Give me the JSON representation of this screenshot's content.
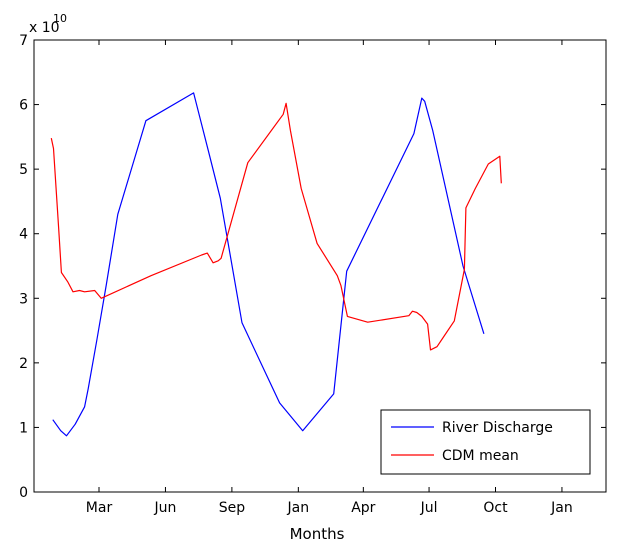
{
  "chart_data": {
    "type": "line",
    "title": "",
    "xlabel": "Months",
    "ylabel": "",
    "y_multiplier_label": "x 10",
    "y_multiplier_exponent": "10",
    "xlim": [
      0,
      792
    ],
    "ylim": [
      0,
      7
    ],
    "y_ticks": [
      0,
      1,
      2,
      3,
      4,
      5,
      6,
      7
    ],
    "x_ticks": [
      {
        "x": 90,
        "label": "Mar"
      },
      {
        "x": 182,
        "label": "Jun"
      },
      {
        "x": 274,
        "label": "Sep"
      },
      {
        "x": 366,
        "label": "Jan"
      },
      {
        "x": 456,
        "label": "Apr"
      },
      {
        "x": 547,
        "label": "Jul"
      },
      {
        "x": 639,
        "label": "Oct"
      },
      {
        "x": 731,
        "label": "Jan"
      }
    ],
    "grid": false,
    "legend_position": "bottom-right",
    "series": [
      {
        "name": "River Discharge",
        "color": "#0000ff",
        "x": [
          26,
          37,
          45,
          57,
          70,
          75,
          87,
          100,
          116,
          155,
          221,
          241,
          258,
          288,
          340,
          372,
          415,
          433,
          526,
          537,
          541,
          552,
          594,
          623
        ],
        "y": [
          1.12,
          0.95,
          0.87,
          1.05,
          1.32,
          1.6,
          2.35,
          3.2,
          4.3,
          5.75,
          6.18,
          5.3,
          4.55,
          2.62,
          1.38,
          0.95,
          1.52,
          3.42,
          5.55,
          6.1,
          6.05,
          5.6,
          3.5,
          2.45
        ]
      },
      {
        "name": "CDM mean",
        "color": "#ff0000",
        "x": [
          24,
          27,
          34,
          38,
          47,
          54,
          63,
          70,
          84,
          93,
          162,
          232,
          240,
          248,
          255,
          259,
          296,
          345,
          349,
          355,
          370,
          392,
          420,
          425,
          434,
          462,
          519,
          524,
          530,
          537,
          545,
          549,
          558,
          567,
          582,
          596,
          598,
          611,
          629,
          645,
          647
        ],
        "y": [
          5.48,
          5.32,
          4.1,
          3.4,
          3.25,
          3.1,
          3.12,
          3.1,
          3.12,
          3.0,
          3.35,
          3.67,
          3.7,
          3.55,
          3.58,
          3.62,
          5.1,
          5.85,
          6.02,
          5.6,
          4.7,
          3.85,
          3.35,
          3.2,
          2.72,
          2.63,
          2.73,
          2.8,
          2.78,
          2.72,
          2.6,
          2.2,
          2.25,
          2.4,
          2.65,
          3.45,
          4.4,
          4.7,
          5.08,
          5.2,
          4.78
        ]
      }
    ]
  }
}
